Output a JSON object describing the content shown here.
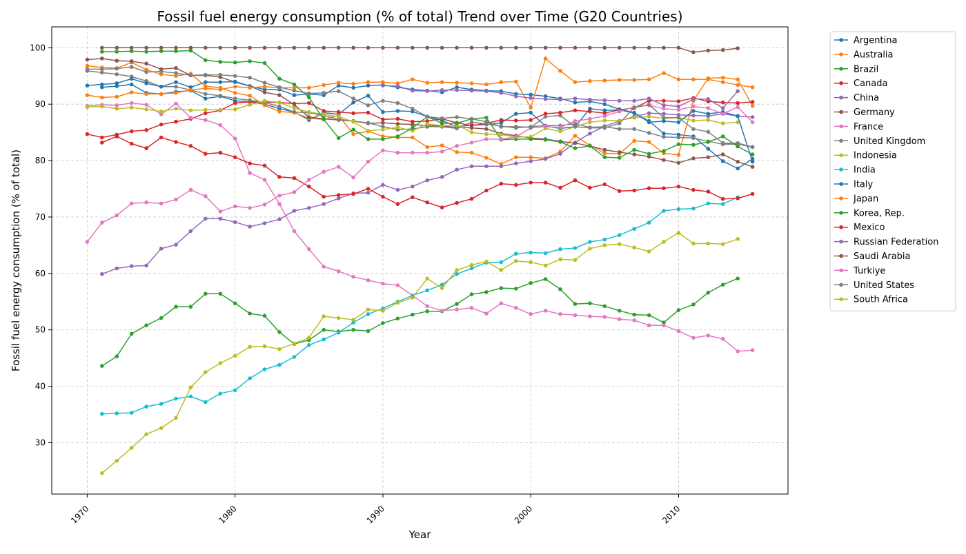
{
  "chart_data": {
    "type": "line",
    "title": "Fossil fuel energy consumption (% of total) Trend over Time (G20 Countries)",
    "xlabel": "Year",
    "ylabel": "Fossil fuel energy consumption (% of total)",
    "xlim": [
      1967.6,
      2017.4
    ],
    "ylim": [
      20.9,
      103.7
    ],
    "xticks": [
      1970,
      1980,
      1990,
      2000,
      2010
    ],
    "yticks": [
      30,
      40,
      50,
      60,
      70,
      80,
      90,
      100
    ],
    "grid": true,
    "legend_position": "outside-right",
    "series": [
      {
        "name": "Argentina",
        "color": "#1f77b4",
        "start": 1971,
        "values": [
          93.0,
          93.2,
          93.5,
          92.0,
          91.8,
          92.2,
          92.4,
          91.0,
          91.4,
          90.6,
          90.4,
          90.0,
          89.2,
          88.6,
          87.2,
          88.5,
          88.2,
          90.3,
          91.5,
          88.6,
          88.8,
          88.7,
          87.8,
          87.1,
          86.0,
          86.3,
          86.4,
          86.7,
          88.3,
          88.5,
          86.1,
          85.7,
          86.0,
          89.2,
          88.9,
          89.0,
          88.4,
          87.0,
          84.8,
          84.6,
          84.3,
          82.1,
          79.9,
          78.6,
          80.3
        ]
      },
      {
        "name": "Australia",
        "color": "#ff7f0e",
        "start": 1970,
        "values": [
          96.8,
          96.5,
          96.4,
          97.4,
          96.1,
          95.3,
          95.0,
          95.4,
          93.2,
          92.9,
          92.0,
          91.5,
          89.8,
          88.7,
          88.5,
          87.5,
          87.3,
          88.0,
          84.7,
          85.2,
          84.3,
          84.1,
          84.1,
          82.4,
          82.7,
          81.5,
          81.4,
          80.5,
          79.4,
          80.6,
          80.6,
          80.4,
          81.6,
          84.4,
          82.7,
          81.3,
          81.2,
          83.5,
          83.3,
          81.3,
          81.0,
          90.6,
          94.6,
          94.7,
          94.4,
          89.7
        ]
      },
      {
        "name": "Brazil",
        "color": "#2ca02c",
        "start": 1971,
        "values": [
          43.6,
          45.3,
          49.3,
          50.8,
          52.1,
          54.1,
          54.1,
          56.4,
          56.4,
          54.7,
          52.9,
          52.5,
          49.6,
          47.5,
          48.2,
          50.0,
          49.7,
          50.0,
          49.8,
          51.2,
          52.0,
          52.7,
          53.3,
          53.3,
          54.6,
          56.3,
          56.7,
          57.4,
          57.3,
          58.3,
          59.0,
          57.2,
          54.6,
          54.7,
          54.2,
          53.4,
          52.7,
          52.6,
          51.3,
          53.5,
          54.5,
          56.6,
          58.0,
          59.1
        ]
      },
      {
        "name": "Canada",
        "color": "#d62728",
        "start": 1970,
        "values": [
          84.7,
          84.1,
          84.6,
          85.2,
          85.4,
          86.4,
          86.9,
          87.4,
          88.4,
          88.9,
          90.2,
          90.4,
          90.4,
          90.3,
          90.1,
          90.2,
          88.8,
          88.6,
          88.4,
          88.5,
          87.3,
          87.4,
          86.9,
          87.0,
          87.4,
          86.7,
          86.2,
          86.6,
          87.2,
          87.1,
          87.2,
          88.3,
          88.5,
          88.9,
          88.7,
          88.4,
          89.0,
          89.3,
          90.6,
          90.6,
          90.5,
          91.1,
          90.5,
          90.3,
          90.2,
          90.4
        ]
      },
      {
        "name": "China",
        "color": "#9467bd",
        "start": 1971,
        "values": [
          59.9,
          60.9,
          61.3,
          61.4,
          64.4,
          65.1,
          67.5,
          69.7,
          69.7,
          69.1,
          68.3,
          68.9,
          69.6,
          71.1,
          71.6,
          72.3,
          73.3,
          74.2,
          74.3,
          75.7,
          74.8,
          75.4,
          76.5,
          77.1,
          78.4,
          79.0,
          79.0,
          79.0,
          79.5,
          79.9,
          80.3,
          81.2,
          83.2,
          84.8,
          86.1,
          87.0,
          87.8,
          88.4,
          88.3,
          88.1,
          88.0,
          87.9,
          88.3,
          87.9,
          87.7
        ]
      },
      {
        "name": "Germany",
        "color": "#8c564b",
        "start": 1970,
        "values": [
          97.9,
          98.1,
          97.7,
          97.6,
          97.2,
          96.2,
          96.4,
          95.1,
          95.1,
          94.8,
          93.9,
          93.2,
          92.1,
          91.6,
          89.9,
          87.7,
          87.4,
          87.2,
          87.0,
          86.6,
          86.7,
          86.5,
          86.4,
          86.2,
          86.1,
          85.9,
          85.8,
          85.6,
          84.8,
          84.4,
          84.0,
          83.8,
          83.4,
          83.1,
          82.6,
          81.9,
          81.5,
          81.1,
          80.7,
          80.1,
          79.6,
          80.4,
          80.6,
          81.1,
          79.8,
          78.9
        ]
      },
      {
        "name": "France",
        "color": "#e377c2",
        "start": 1970,
        "values": [
          89.7,
          89.9,
          89.8,
          90.2,
          89.9,
          88.2,
          90.1,
          87.6,
          87.2,
          86.3,
          83.9,
          77.8,
          76.6,
          72.3,
          67.5,
          64.3,
          61.2,
          60.4,
          59.4,
          58.8,
          58.2,
          57.9,
          56.1,
          54.2,
          53.4,
          53.6,
          53.9,
          52.9,
          54.7,
          53.9,
          52.8,
          53.4,
          52.8,
          52.6,
          52.4,
          52.3,
          51.9,
          51.7,
          50.8,
          50.8,
          49.8,
          48.6,
          49.0,
          48.4,
          46.2,
          46.4
        ]
      },
      {
        "name": "United Kingdom",
        "color": "#7f7f7f",
        "start": 1970,
        "values": [
          95.9,
          95.6,
          95.3,
          94.9,
          94.1,
          93.1,
          93.1,
          92.5,
          91.8,
          91.5,
          91.0,
          90.7,
          90.3,
          89.6,
          88.6,
          88.5,
          88.0,
          87.3,
          87.0,
          86.7,
          86.0,
          85.5,
          85.6,
          86.0,
          86.0,
          85.7,
          86.8,
          86.5,
          86.1,
          85.8,
          86.0,
          86.2,
          86.2,
          86.5,
          85.9,
          86.0,
          85.6,
          85.6,
          84.9,
          84.2,
          84.1,
          84.0,
          83.4,
          82.9,
          82.9,
          82.4
        ]
      },
      {
        "name": "Indonesia",
        "color": "#bcbd22",
        "start": 1970,
        "values": [
          89.5,
          89.6,
          89.2,
          89.4,
          89.1,
          88.7,
          89.2,
          88.9,
          89.0,
          89.0,
          89.1,
          89.9,
          90.6,
          90.3,
          89.3,
          88.6,
          88.2,
          87.8,
          86.9,
          85.3,
          85.5,
          85.9,
          85.3,
          86.5,
          86.2,
          86.3,
          85.0,
          84.7,
          84.6,
          84.2,
          84.2,
          85.7,
          85.2,
          86.0,
          86.8,
          87.1,
          87.1,
          87.6,
          87.8,
          87.5,
          87.6,
          87.1,
          87.2,
          86.6,
          86.8
        ]
      },
      {
        "name": "India",
        "color": "#17becf",
        "start": 1971,
        "values": [
          35.1,
          35.2,
          35.3,
          36.4,
          36.9,
          37.8,
          38.2,
          37.2,
          38.7,
          39.3,
          41.4,
          43.0,
          43.8,
          45.2,
          47.3,
          48.3,
          49.5,
          51.3,
          52.8,
          53.8,
          55.0,
          56.1,
          57.0,
          58.0,
          59.9,
          60.9,
          61.9,
          62.0,
          63.5,
          63.7,
          63.6,
          64.3,
          64.5,
          65.6,
          66.0,
          66.8,
          67.9,
          69.0,
          71.1,
          71.4,
          71.5,
          72.4,
          72.3,
          73.5
        ]
      },
      {
        "name": "Italy",
        "color": "#1f77b4",
        "start": 1970,
        "values": [
          93.3,
          93.5,
          93.7,
          94.5,
          93.7,
          93.1,
          93.9,
          93.0,
          93.9,
          93.9,
          94.0,
          93.2,
          92.6,
          92.6,
          91.6,
          91.8,
          91.6,
          93.3,
          92.9,
          93.3,
          93.4,
          93.0,
          92.6,
          92.4,
          92.1,
          93.0,
          92.6,
          92.4,
          92.3,
          91.8,
          91.7,
          91.4,
          91.0,
          90.3,
          90.5,
          90.0,
          89.1,
          88.5,
          86.8,
          87.0,
          86.8,
          88.8,
          88.3,
          88.6,
          87.9,
          79.8
        ]
      },
      {
        "name": "Japan",
        "color": "#ff7f0e",
        "start": 1970,
        "values": [
          91.6,
          91.2,
          91.3,
          92.1,
          91.8,
          91.8,
          92.0,
          92.5,
          92.8,
          92.6,
          93.1,
          92.9,
          93.1,
          92.9,
          92.9,
          92.9,
          93.4,
          93.8,
          93.6,
          93.9,
          93.9,
          93.7,
          94.4,
          93.8,
          93.9,
          93.8,
          93.7,
          93.5,
          93.9,
          94.0,
          89.4,
          98.1,
          95.9,
          93.9,
          94.1,
          94.2,
          94.3,
          94.3,
          94.4,
          95.5,
          94.4,
          94.4,
          94.4,
          93.9,
          93.4,
          93.0
        ]
      },
      {
        "name": "Korea, Rep.",
        "color": "#2ca02c",
        "start": 1971,
        "values": [
          99.3,
          99.3,
          99.4,
          99.3,
          99.4,
          99.4,
          99.5,
          97.8,
          97.5,
          97.4,
          97.6,
          97.3,
          94.5,
          93.5,
          91.2,
          87.3,
          84.0,
          85.5,
          83.8,
          83.8,
          84.3,
          85.8,
          87.8,
          86.6,
          86.6,
          87.4,
          87.6,
          83.7,
          83.8,
          83.8,
          83.7,
          83.3,
          82.2,
          82.6,
          80.6,
          80.5,
          81.9,
          81.2,
          81.7,
          82.9,
          82.8,
          83.3,
          84.3,
          82.5,
          81.1
        ]
      },
      {
        "name": "Mexico",
        "color": "#d62728",
        "start": 1971,
        "values": [
          83.2,
          84.3,
          83.0,
          82.2,
          84.1,
          83.3,
          82.6,
          81.2,
          81.4,
          80.6,
          79.5,
          79.1,
          77.1,
          76.9,
          75.4,
          73.6,
          73.9,
          74.1,
          75.0,
          73.6,
          72.3,
          73.5,
          72.6,
          71.7,
          72.5,
          73.2,
          74.7,
          75.9,
          75.7,
          76.1,
          76.1,
          75.2,
          76.5,
          75.2,
          75.8,
          74.6,
          74.7,
          75.1,
          75.1,
          75.4,
          74.8,
          74.5,
          73.2,
          73.3,
          74.1
        ]
      },
      {
        "name": "Russian Federation",
        "color": "#9467bd",
        "start": 1990,
        "values": [
          93.3,
          93.2,
          92.4,
          92.3,
          92.5,
          92.5,
          92.4,
          92.3,
          92.0,
          91.4,
          91.1,
          90.9,
          90.8,
          91.0,
          90.8,
          90.7,
          90.6,
          90.6,
          91.0,
          89.8,
          89.6,
          90.9,
          90.9,
          89.3,
          92.3
        ]
      },
      {
        "name": "Saudi Arabia",
        "color": "#8c564b",
        "start": 1971,
        "values": [
          100.0,
          100.0,
          100.0,
          100.0,
          100.0,
          100.0,
          100.0,
          100.0,
          100.0,
          100.0,
          100.0,
          100.0,
          100.0,
          100.0,
          100.0,
          100.0,
          100.0,
          100.0,
          100.0,
          100.0,
          100.0,
          100.0,
          100.0,
          100.0,
          100.0,
          100.0,
          100.0,
          100.0,
          100.0,
          100.0,
          100.0,
          100.0,
          100.0,
          100.0,
          100.0,
          100.0,
          100.0,
          100.0,
          100.0,
          100.0,
          99.2,
          99.5,
          99.6,
          99.9
        ]
      },
      {
        "name": "Turkiye",
        "color": "#e377c2",
        "start": 1970,
        "values": [
          65.6,
          69.0,
          70.3,
          72.4,
          72.6,
          72.4,
          73.1,
          74.8,
          73.7,
          71.0,
          71.9,
          71.6,
          72.2,
          73.8,
          74.4,
          76.6,
          78.0,
          78.9,
          77.0,
          79.8,
          81.8,
          81.4,
          81.4,
          81.4,
          81.6,
          82.6,
          83.2,
          83.8,
          83.8,
          84.2,
          85.8,
          86.0,
          85.9,
          87.0,
          87.4,
          87.9,
          88.7,
          89.5,
          89.8,
          89.2,
          89.0,
          89.6,
          89.3,
          88.3,
          89.5,
          86.8
        ]
      },
      {
        "name": "United States",
        "color": "#7f7f7f",
        "start": 1970,
        "values": [
          96.2,
          96.2,
          96.3,
          96.6,
          95.7,
          95.8,
          95.5,
          95.1,
          95.2,
          95.2,
          95.0,
          94.7,
          93.8,
          93.0,
          92.4,
          91.9,
          92.0,
          92.3,
          91.0,
          89.8,
          90.6,
          90.2,
          89.2,
          87.8,
          87.5,
          87.7,
          87.4,
          86.9,
          86.0,
          86.0,
          85.9,
          87.8,
          88.0,
          86.0,
          85.8,
          85.8,
          86.6,
          89.4,
          89.9,
          87.6,
          87.6,
          85.6,
          85.1,
          83.1,
          83.1,
          82.4
        ]
      },
      {
        "name": "South Africa",
        "color": "#bcbd22",
        "start": 1971,
        "values": [
          24.6,
          26.8,
          29.1,
          31.5,
          32.6,
          34.4,
          39.8,
          42.5,
          44.1,
          45.4,
          47.0,
          47.1,
          46.6,
          47.6,
          48.6,
          52.4,
          52.1,
          51.8,
          53.6,
          53.4,
          54.8,
          55.7,
          59.1,
          57.4,
          60.6,
          61.5,
          62.1,
          60.6,
          62.2,
          62.0,
          61.4,
          62.5,
          62.4,
          64.4,
          65.0,
          65.2,
          64.6,
          63.9,
          65.6,
          67.2,
          65.3,
          65.3,
          65.2,
          66.1
        ]
      }
    ]
  }
}
